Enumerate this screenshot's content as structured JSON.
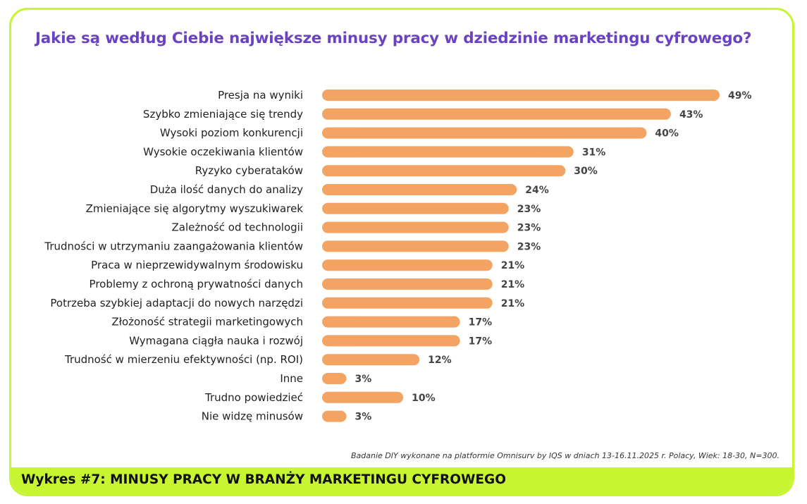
{
  "colors": {
    "accent_border": "#c8f531",
    "title": "#6a42c2",
    "bar": "#f4a462",
    "footer_bg": "#c8f531"
  },
  "title": "Jakie są według Ciebie największe minusy pracy w dziedzinie marketingu cyfrowego?",
  "source": "Badanie DIY wykonane na platformie Omnisurv by IQS w dniach 13-16.11.2025 r.  Polacy, Wiek: 18-30, N=300.",
  "footer": "Wykres #7: MINUSY PRACY W BRANŻY MARKETINGU CYFROWEGO",
  "chart_data": {
    "type": "bar",
    "orientation": "horizontal",
    "title": "Jakie są według Ciebie największe minusy pracy w dziedzinie marketingu cyfrowego?",
    "xlabel": "",
    "ylabel": "",
    "unit": "%",
    "xlim": [
      0,
      49
    ],
    "grid": false,
    "legend": "none",
    "categories": [
      "Presja na wyniki",
      "Szybko zmieniające się trendy",
      "Wysoki poziom konkurencji",
      "Wysokie oczekiwania klientów",
      "Ryzyko cyberataków",
      "Duża ilość danych do analizy",
      "Zmieniające się algorytmy wyszukiwarek",
      "Zależność od technologii",
      "Trudności w utrzymaniu zaangażowania klientów",
      "Praca w nieprzewidywalnym środowisku",
      "Problemy z ochroną prywatności danych",
      "Potrzeba szybkiej adaptacji do nowych narzędzi",
      "Złożoność strategii marketingowych",
      "Wymagana ciągła nauka i rozwój",
      "Trudność w mierzeniu efektywności (np. ROI)",
      "Inne",
      "Trudno powiedzieć",
      "Nie widzę minusów"
    ],
    "values": [
      49,
      43,
      40,
      31,
      30,
      24,
      23,
      23,
      23,
      21,
      21,
      21,
      17,
      17,
      12,
      3,
      10,
      3
    ],
    "value_labels": [
      "49%",
      "43%",
      "40%",
      "31%",
      "30%",
      "24%",
      "23%",
      "23%",
      "23%",
      "21%",
      "21%",
      "21%",
      "17%",
      "17%",
      "12%",
      "3%",
      "10%",
      "3%"
    ]
  }
}
